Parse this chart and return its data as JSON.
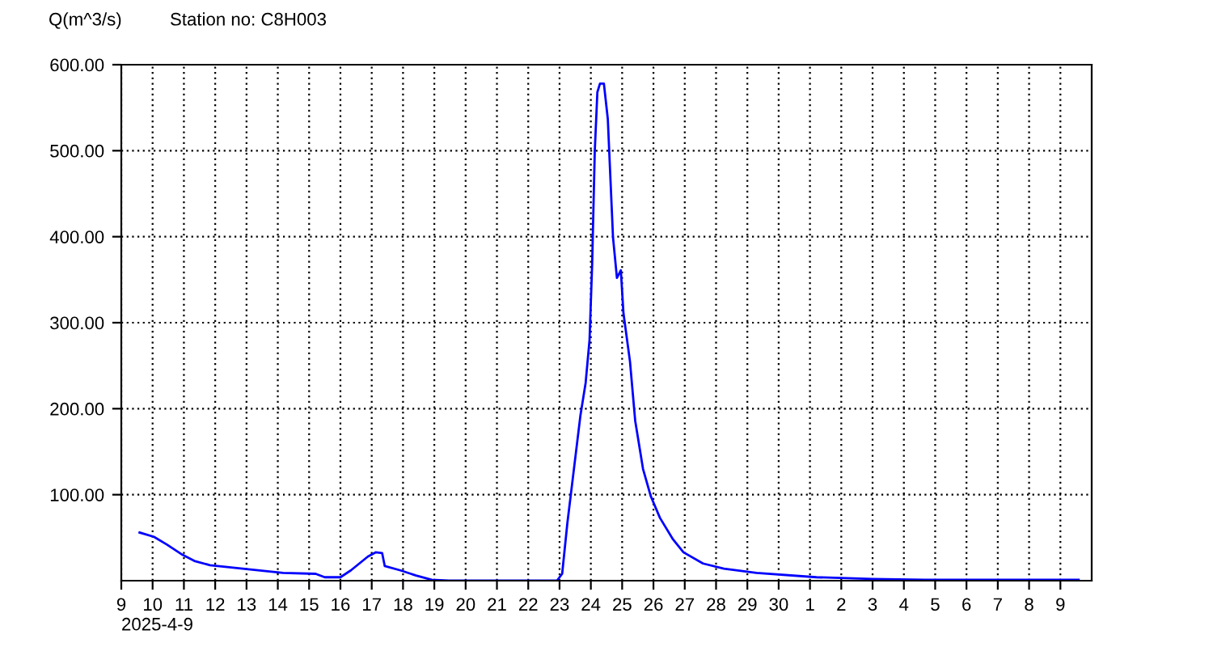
{
  "chart_data": {
    "type": "line",
    "title": "Station no: C8H003",
    "ylabel": "Q(m^3/s)",
    "annotations": [
      "2025-4-9"
    ],
    "x": [
      "2025-04-09T14:00",
      "2025-04-10T01:00",
      "2025-04-10T11:00",
      "2025-04-10T23:00",
      "2025-04-11T08:00",
      "2025-04-11T20:00",
      "2025-04-12T21:00",
      "2025-04-14T04:00",
      "2025-04-15T05:00",
      "2025-04-15T12:00",
      "2025-04-16T00:00",
      "2025-04-16T08:00",
      "2025-04-16T21:00",
      "2025-04-17T03:00",
      "2025-04-17T08:00",
      "2025-04-17T10:00",
      "2025-04-17T22:00",
      "2025-04-18T10:00",
      "2025-04-18T22:00",
      "2025-04-19T11:00",
      "2025-04-22T22:00",
      "2025-04-23T02:00",
      "2025-04-23T06:00",
      "2025-04-23T10:00",
      "2025-04-23T16:00",
      "2025-04-23T20:00",
      "2025-04-23T23:00",
      "2025-04-24T01:00",
      "2025-04-24T03:00",
      "2025-04-24T05:00",
      "2025-04-24T07:00",
      "2025-04-24T10:00",
      "2025-04-24T13:00",
      "2025-04-24T17:00",
      "2025-04-24T20:00",
      "2025-04-24T23:00",
      "2025-04-25T01:00",
      "2025-04-25T06:00",
      "2025-04-25T10:00",
      "2025-04-25T16:00",
      "2025-04-25T22:00",
      "2025-04-26T05:00",
      "2025-04-26T15:00",
      "2025-04-26T23:00",
      "2025-04-27T14:00",
      "2025-04-28T06:00",
      "2025-04-29T07:00",
      "2025-05-01T05:00",
      "2025-05-03T00:00",
      "2025-05-04T16:00",
      "2025-05-09T14:00"
    ],
    "series": [
      {
        "color": "#0000ff",
        "values": [
          56,
          51,
          42,
          30,
          23,
          18,
          14,
          9,
          8,
          4,
          4,
          12,
          28,
          33,
          32,
          17,
          12,
          6,
          1,
          0,
          0,
          8,
          67,
          117,
          192,
          230,
          280,
          368,
          499,
          568,
          578,
          578,
          537,
          399,
          352,
          361,
          311,
          255,
          186,
          130,
          98,
          73,
          48,
          33,
          20,
          14,
          9,
          4,
          2,
          1,
          1
        ]
      }
    ],
    "xlim": [
      "2025-04-09",
      "2025-05-10"
    ],
    "xticks": [
      {
        "value": "2025-04-09",
        "label": "9"
      },
      {
        "value": "2025-04-10",
        "label": "10"
      },
      {
        "value": "2025-04-11",
        "label": "11"
      },
      {
        "value": "2025-04-12",
        "label": "12"
      },
      {
        "value": "2025-04-13",
        "label": "13"
      },
      {
        "value": "2025-04-14",
        "label": "14"
      },
      {
        "value": "2025-04-15",
        "label": "15"
      },
      {
        "value": "2025-04-16",
        "label": "16"
      },
      {
        "value": "2025-04-17",
        "label": "17"
      },
      {
        "value": "2025-04-18",
        "label": "18"
      },
      {
        "value": "2025-04-19",
        "label": "19"
      },
      {
        "value": "2025-04-20",
        "label": "20"
      },
      {
        "value": "2025-04-21",
        "label": "21"
      },
      {
        "value": "2025-04-22",
        "label": "22"
      },
      {
        "value": "2025-04-23",
        "label": "23"
      },
      {
        "value": "2025-04-24",
        "label": "24"
      },
      {
        "value": "2025-04-25",
        "label": "25"
      },
      {
        "value": "2025-04-26",
        "label": "26"
      },
      {
        "value": "2025-04-27",
        "label": "27"
      },
      {
        "value": "2025-04-28",
        "label": "28"
      },
      {
        "value": "2025-04-29",
        "label": "29"
      },
      {
        "value": "2025-04-30",
        "label": "30"
      },
      {
        "value": "2025-05-01",
        "label": "1"
      },
      {
        "value": "2025-05-02",
        "label": "2"
      },
      {
        "value": "2025-05-03",
        "label": "3"
      },
      {
        "value": "2025-05-04",
        "label": "4"
      },
      {
        "value": "2025-05-05",
        "label": "5"
      },
      {
        "value": "2025-05-06",
        "label": "6"
      },
      {
        "value": "2025-05-07",
        "label": "7"
      },
      {
        "value": "2025-05-08",
        "label": "8"
      },
      {
        "value": "2025-05-09",
        "label": "9"
      }
    ],
    "ylim": [
      0,
      600
    ],
    "yticks": [
      {
        "value": 100,
        "label": "100.00"
      },
      {
        "value": 200,
        "label": "200.00"
      },
      {
        "value": 300,
        "label": "300.00"
      },
      {
        "value": 400,
        "label": "400.00"
      },
      {
        "value": 500,
        "label": "500.00"
      },
      {
        "value": 600,
        "label": "600.00"
      }
    ],
    "grid": true,
    "line_style": "solid",
    "marker": "none",
    "legend": false
  }
}
